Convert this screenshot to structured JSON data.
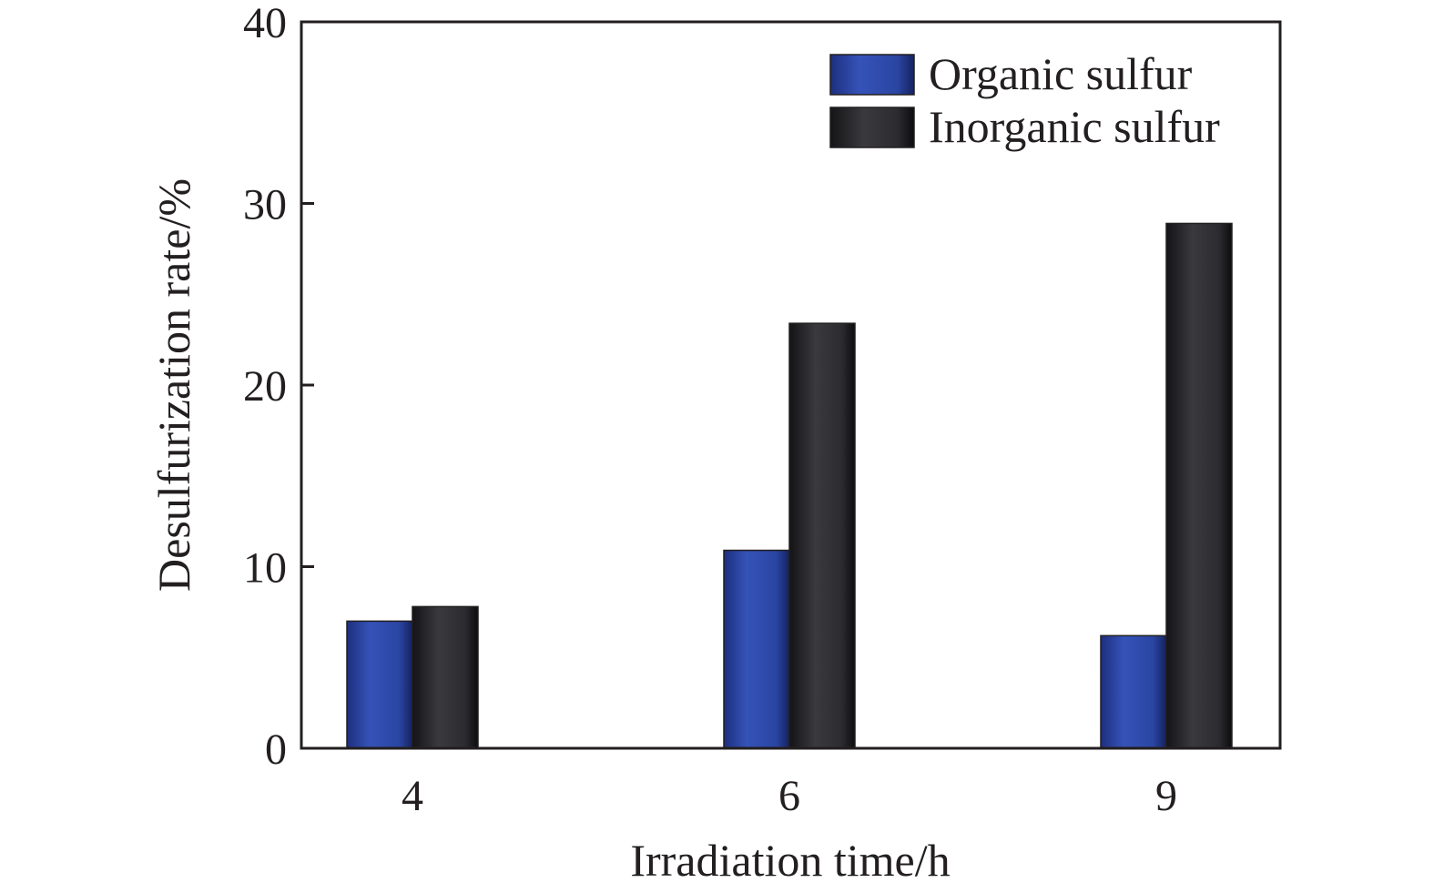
{
  "chart_data": {
    "type": "bar",
    "title": "",
    "xlabel": "Irradiation time/h",
    "ylabel": "Desulfurization rate/%",
    "categories": [
      "4",
      "6",
      "9"
    ],
    "ylim": [
      0,
      40
    ],
    "yticks": [
      0,
      10,
      20,
      30,
      40
    ],
    "grid": false,
    "legend_position": "top-right",
    "series": [
      {
        "name": "Organic sulfur",
        "values": [
          7.0,
          10.9,
          6.2
        ],
        "color": "#2e4fb0"
      },
      {
        "name": "Inorganic sulfur",
        "values": [
          7.8,
          23.4,
          28.9
        ],
        "color": "#2b2b2e"
      }
    ]
  }
}
